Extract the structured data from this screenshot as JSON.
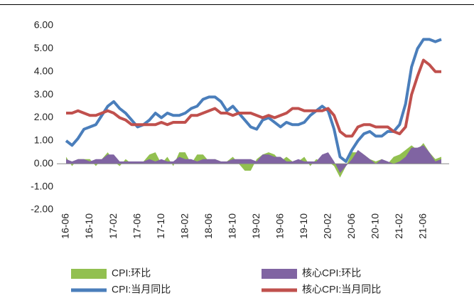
{
  "chart_data": {
    "type": "line",
    "categories": [
      "16-06",
      null,
      null,
      null,
      "16-10",
      null,
      null,
      null,
      "17-02",
      null,
      null,
      null,
      "17-06",
      null,
      null,
      null,
      "17-10",
      null,
      null,
      null,
      "18-02",
      null,
      null,
      null,
      "18-06",
      null,
      null,
      null,
      "18-10",
      null,
      null,
      null,
      "19-02",
      null,
      null,
      null,
      "19-06",
      null,
      null,
      null,
      "19-10",
      null,
      null,
      null,
      "20-02",
      null,
      null,
      null,
      "20-06",
      null,
      null,
      null,
      "20-10",
      null,
      null,
      null,
      "21-02",
      null,
      null,
      null,
      "21-06",
      null,
      null,
      null
    ],
    "ylim": [
      -2,
      6
    ],
    "yticks": [
      {
        "value": -2,
        "label": "-2.00"
      },
      {
        "value": -1,
        "label": "-1.00"
      },
      {
        "value": 0,
        "label": "0.00"
      },
      {
        "value": 1,
        "label": "1.00"
      },
      {
        "value": 2,
        "label": "2.00"
      },
      {
        "value": 3,
        "label": "3.00"
      },
      {
        "value": 4,
        "label": "4.00"
      },
      {
        "value": 5,
        "label": "5.00"
      },
      {
        "value": 6,
        "label": "6.00"
      }
    ],
    "series": [
      {
        "name": "CPI:环比",
        "kind": "area",
        "color": "#92c050",
        "values": [
          0.3,
          -0.1,
          0.2,
          0.2,
          0.2,
          -0.1,
          0.2,
          0.5,
          0.1,
          -0.1,
          0.2,
          0.0,
          0.1,
          0.1,
          0.4,
          0.5,
          0.0,
          0.3,
          -0.1,
          0.5,
          0.5,
          0.0,
          0.4,
          0.4,
          0.1,
          0.2,
          0.1,
          0.1,
          0.3,
          0.0,
          -0.3,
          -0.3,
          0.2,
          0.4,
          0.5,
          0.4,
          0.1,
          0.3,
          0.1,
          0.1,
          0.3,
          -0.1,
          0.2,
          0.1,
          0.1,
          -0.1,
          -0.6,
          -0.1,
          0.5,
          0.5,
          0.4,
          0.2,
          0.1,
          0.2,
          0.0,
          0.3,
          0.4,
          0.6,
          0.8,
          0.6,
          0.9,
          0.5,
          0.2,
          0.3
        ]
      },
      {
        "name": "核心CPI:环比",
        "kind": "area",
        "color": "#8064a2",
        "values": [
          0.2,
          0.1,
          0.2,
          0.2,
          0.1,
          0.2,
          0.2,
          0.4,
          0.4,
          0.1,
          0.1,
          0.1,
          0.1,
          0.1,
          0.2,
          0.1,
          0.2,
          0.1,
          0.1,
          0.3,
          0.2,
          0.2,
          0.1,
          0.2,
          0.2,
          0.2,
          0.1,
          0.1,
          0.2,
          0.2,
          0.2,
          0.2,
          0.1,
          0.4,
          0.4,
          0.3,
          0.3,
          0.1,
          0.1,
          0.2,
          0.1,
          0.1,
          0.1,
          0.4,
          0.5,
          0.1,
          -0.4,
          -0.1,
          0.2,
          0.6,
          0.4,
          0.2,
          0.0,
          0.2,
          0.1,
          0.0,
          0.1,
          0.3,
          0.7,
          0.7,
          0.8,
          0.5,
          0.1,
          0.2
        ]
      },
      {
        "name": "CPI:当月同比",
        "kind": "line",
        "color": "#4a7ebb",
        "values": [
          1.0,
          0.8,
          1.1,
          1.5,
          1.6,
          1.7,
          2.1,
          2.5,
          2.7,
          2.4,
          2.2,
          1.9,
          1.6,
          1.7,
          1.9,
          2.2,
          2.0,
          2.2,
          2.1,
          2.1,
          2.2,
          2.4,
          2.5,
          2.8,
          2.9,
          2.9,
          2.7,
          2.3,
          2.5,
          2.2,
          1.9,
          1.6,
          1.5,
          1.9,
          2.0,
          1.8,
          1.6,
          1.8,
          1.7,
          1.7,
          1.8,
          2.1,
          2.3,
          2.5,
          2.3,
          1.5,
          0.3,
          0.1,
          0.6,
          1.0,
          1.3,
          1.4,
          1.2,
          1.2,
          1.4,
          1.4,
          1.7,
          2.6,
          4.2,
          5.0,
          5.4,
          5.4,
          5.3,
          5.4
        ]
      },
      {
        "name": "核心CPI:当月同比",
        "kind": "line",
        "color": "#c0504d",
        "values": [
          2.2,
          2.2,
          2.3,
          2.2,
          2.1,
          2.1,
          2.2,
          2.3,
          2.2,
          2.0,
          1.9,
          1.7,
          1.7,
          1.7,
          1.7,
          1.7,
          1.8,
          1.7,
          1.8,
          1.8,
          1.8,
          2.1,
          2.1,
          2.2,
          2.3,
          2.4,
          2.2,
          2.2,
          2.1,
          2.2,
          2.2,
          2.2,
          2.1,
          2.0,
          2.1,
          2.0,
          2.1,
          2.2,
          2.4,
          2.4,
          2.3,
          2.3,
          2.3,
          2.3,
          2.4,
          2.1,
          1.4,
          1.2,
          1.2,
          1.6,
          1.7,
          1.7,
          1.6,
          1.6,
          1.6,
          1.4,
          1.3,
          1.6,
          3.0,
          3.8,
          4.5,
          4.3,
          4.0,
          4.0
        ]
      }
    ]
  }
}
